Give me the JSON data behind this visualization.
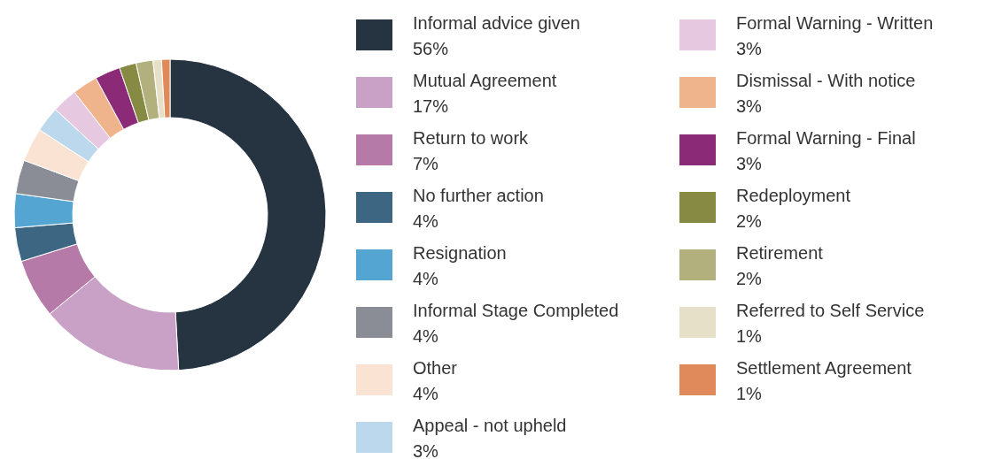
{
  "chart_data": {
    "type": "donut",
    "categories": [
      "Informal advice given",
      "Mutual Agreement",
      "Return to work",
      "No further action",
      "Resignation",
      "Informal Stage Completed",
      "Other",
      "Appeal - not upheld",
      "Formal Warning - Written",
      "Dismissal - With notice",
      "Formal Warning - Final",
      "Redeployment",
      "Retirement",
      "Referred to Self Service",
      "Settlement Agreement"
    ],
    "values": [
      56,
      17,
      7,
      4,
      4,
      4,
      4,
      3,
      3,
      3,
      3,
      2,
      2,
      1,
      1
    ],
    "value_labels": [
      "56%",
      "17%",
      "7%",
      "4%",
      "4%",
      "4%",
      "4%",
      "3%",
      "3%",
      "3%",
      "3%",
      "2%",
      "2%",
      "1%",
      "1%"
    ],
    "colors": [
      "#263442",
      "#c9a0c6",
      "#b57aa8",
      "#3c6682",
      "#55a5d2",
      "#8a8d96",
      "#fbe3d4",
      "#bcd8ec",
      "#e6c9e1",
      "#efb48c",
      "#8b2a76",
      "#878a42",
      "#b2b17e",
      "#e6e0c8",
      "#e0895a"
    ],
    "legend": "right"
  }
}
